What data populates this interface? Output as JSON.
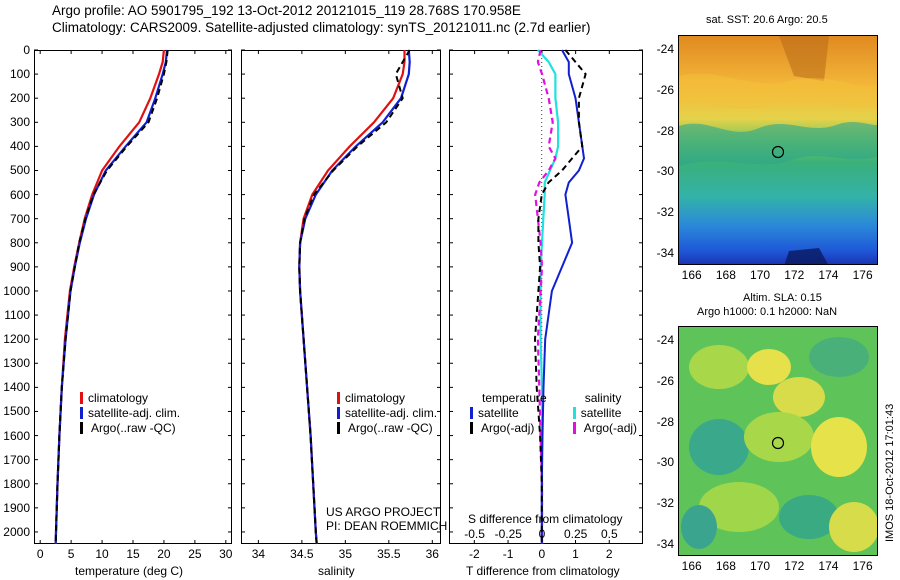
{
  "header": {
    "line1": "Argo profile: AO 5901795_192 13-Oct-2012 20121015_119 28.768S 170.958E",
    "line2": "Climatology: CARS2009. Satellite-adjusted climatology: synTS_20121011.nc (2.7d earlier)"
  },
  "depth_ticks": [
    "0",
    "100",
    "200",
    "300",
    "400",
    "500",
    "600",
    "700",
    "800",
    "900",
    "1000",
    "1100",
    "1200",
    "1300",
    "1400",
    "1500",
    "1600",
    "1700",
    "1800",
    "1900",
    "2000"
  ],
  "colors": {
    "climatology": "#e01010",
    "satellite": "#1020d0",
    "argo": "#000000",
    "sat_sal": "#20e0e0",
    "argo_sal": "#e010e0"
  },
  "temperature_panel": {
    "xlabel": "temperature (deg C)",
    "xticks": [
      "0",
      "5",
      "10",
      "15",
      "20",
      "25",
      "30"
    ],
    "legend": [
      "climatology",
      "satellite-adj. clim.",
      "Argo(..raw -QC)"
    ]
  },
  "salinity_panel": {
    "xlabel": "salinity",
    "xticks": [
      "34",
      "34.5",
      "35",
      "35.5",
      "36"
    ],
    "legend": [
      "climatology",
      "satellite-adj. clim.",
      "Argo(..raw -QC)"
    ],
    "credit1": "US ARGO PROJECT",
    "credit2": "PI: DEAN ROEMMICH"
  },
  "diff_panel": {
    "xlabel": "T difference from climatology",
    "xticks": [
      "-2",
      "-1",
      "0",
      "1",
      "2"
    ],
    "s_label": "S difference from climatology",
    "s_ticks": [
      "-0.5",
      "-0.25",
      "0",
      "0.25",
      "0.5"
    ],
    "legend_temp_head": "temperature",
    "legend_sal_head": "salinity",
    "legend_temp": [
      "satellite",
      "Argo(-adj)"
    ],
    "legend_sal": [
      "satellite",
      "Argo(-adj)"
    ]
  },
  "sst_map": {
    "title": "sat. SST: 20.6  Argo: 20.5",
    "yticks": [
      "-24",
      "-26",
      "-28",
      "-30",
      "-32",
      "-34"
    ],
    "xticks": [
      "166",
      "168",
      "170",
      "172",
      "174",
      "176"
    ]
  },
  "sla_map": {
    "title1": "Altim. SLA: 0.15",
    "title2": "Argo h1000: 0.1 h2000: NaN",
    "yticks": [
      "-24",
      "-26",
      "-28",
      "-30",
      "-32",
      "-34"
    ],
    "xticks": [
      "166",
      "168",
      "170",
      "172",
      "174",
      "176"
    ]
  },
  "stamp": "IMOS 18-Oct-2012 17:01:43",
  "chart_data": [
    {
      "type": "line",
      "xlabel": "temperature (deg C)",
      "xlim": [
        -1,
        31
      ],
      "ylim": [
        2050,
        0
      ],
      "y": [
        0,
        50,
        100,
        200,
        300,
        400,
        500,
        600,
        700,
        800,
        900,
        1000,
        1200,
        1400,
        1600,
        1800,
        2000,
        2050
      ],
      "series": [
        {
          "name": "climatology",
          "values": [
            20.0,
            19.8,
            19.2,
            17.8,
            16.0,
            12.8,
            10.0,
            8.4,
            7.2,
            6.3,
            5.5,
            4.8,
            4.0,
            3.5,
            3.1,
            2.8,
            2.55,
            2.5
          ]
        },
        {
          "name": "satellite-adj. clim.",
          "values": [
            20.5,
            20.3,
            19.8,
            18.6,
            17.2,
            13.8,
            10.6,
            8.7,
            7.4,
            6.4,
            5.6,
            4.9,
            4.1,
            3.5,
            3.1,
            2.8,
            2.55,
            2.5
          ]
        },
        {
          "name": "Argo(..raw -QC)",
          "values": [
            20.6,
            20.4,
            20.0,
            18.9,
            17.5,
            14.0,
            10.8,
            8.6,
            7.3,
            6.3,
            5.6,
            4.9,
            4.1,
            3.5,
            3.1,
            2.8,
            2.55,
            2.5
          ]
        }
      ]
    },
    {
      "type": "line",
      "xlabel": "salinity",
      "xlim": [
        33.8,
        36.1
      ],
      "ylim": [
        2050,
        0
      ],
      "y": [
        0,
        50,
        100,
        200,
        300,
        400,
        500,
        600,
        700,
        800,
        900,
        1000,
        1200,
        1400,
        1600,
        1800,
        2000,
        2050
      ],
      "series": [
        {
          "name": "climatology",
          "values": [
            35.68,
            35.68,
            35.66,
            35.55,
            35.33,
            35.05,
            34.8,
            34.62,
            34.52,
            34.48,
            34.47,
            34.48,
            34.52,
            34.56,
            34.6,
            34.63,
            34.66,
            34.67
          ]
        },
        {
          "name": "satellite-adj. clim.",
          "values": [
            35.73,
            35.74,
            35.73,
            35.64,
            35.43,
            35.12,
            34.85,
            34.66,
            34.54,
            34.48,
            34.47,
            34.48,
            34.52,
            34.56,
            34.6,
            34.63,
            34.66,
            34.67
          ]
        },
        {
          "name": "Argo(..raw -QC)",
          "values": [
            35.74,
            35.66,
            35.58,
            35.66,
            35.47,
            35.14,
            34.86,
            34.64,
            34.53,
            34.48,
            34.47,
            34.48,
            34.52,
            34.56,
            34.6,
            34.63,
            34.66,
            34.67
          ]
        }
      ]
    },
    {
      "type": "line",
      "xlabel": "T difference from climatology",
      "xlim": [
        -2.75,
        3.0
      ],
      "ylim": [
        2050,
        0
      ],
      "y": [
        0,
        50,
        100,
        200,
        300,
        400,
        450,
        500,
        550,
        600,
        700,
        800,
        900,
        1000,
        1200,
        1400,
        1600,
        1800,
        2000,
        2050
      ],
      "series": [
        {
          "name": "temperature satellite",
          "values": [
            0.6,
            0.8,
            0.8,
            1.0,
            1.1,
            1.2,
            1.25,
            1.1,
            0.8,
            0.7,
            0.8,
            0.9,
            0.6,
            0.3,
            0.1,
            0.05,
            0.02,
            0.0,
            0.0,
            0.0
          ]
        },
        {
          "name": "temperature Argo(-adj)",
          "values": [
            0.7,
            1.0,
            1.3,
            1.1,
            1.1,
            1.2,
            0.9,
            0.6,
            0.2,
            0.0,
            -0.1,
            -0.1,
            -0.05,
            -0.1,
            -0.2,
            -0.15,
            -0.05,
            0.0,
            0.0,
            0.0
          ]
        }
      ]
    },
    {
      "type": "line",
      "xlabel": "S difference from climatology",
      "xlim": [
        -0.69,
        0.75
      ],
      "ylim": [
        2050,
        0
      ],
      "y": [
        0,
        50,
        100,
        200,
        300,
        400,
        450,
        500,
        550,
        600,
        700,
        800,
        900,
        1000,
        1200,
        1400,
        1600,
        1800,
        2000,
        2050
      ],
      "series": [
        {
          "name": "salinity satellite",
          "values": [
            -0.03,
            0.05,
            0.1,
            0.1,
            0.12,
            0.12,
            0.1,
            0.06,
            0.02,
            0.02,
            0.01,
            0.0,
            -0.01,
            -0.01,
            -0.01,
            0.0,
            0.0,
            0.0,
            0.0,
            0.0
          ]
        },
        {
          "name": "salinity Argo(-adj)",
          "values": [
            -0.01,
            -0.03,
            0.0,
            0.05,
            0.08,
            0.05,
            0.1,
            0.05,
            -0.02,
            -0.05,
            -0.03,
            -0.01,
            0.0,
            -0.01,
            -0.03,
            -0.02,
            -0.01,
            0.0,
            0.0,
            0.0
          ]
        }
      ]
    }
  ]
}
